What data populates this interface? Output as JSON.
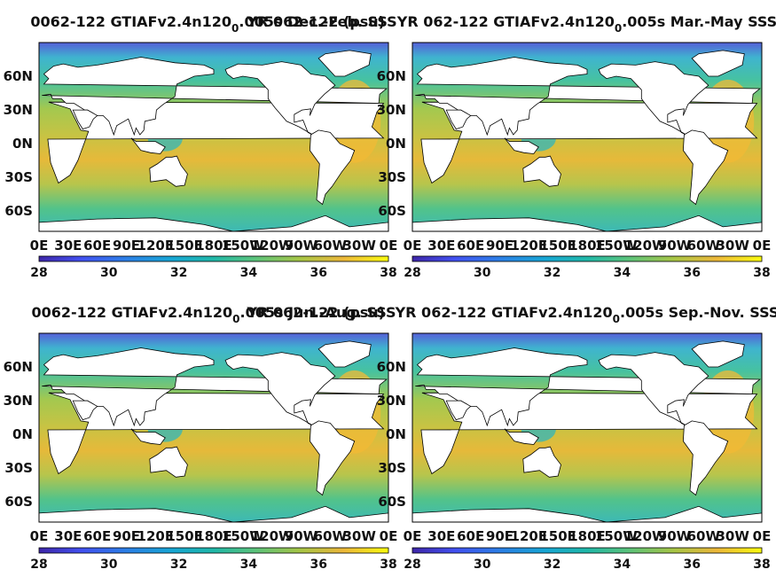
{
  "figure": {
    "colors": {
      "ocean_low": "#3a3dbb",
      "ocean_mid": "#20b0a2",
      "ocean_high": "#f1c232",
      "land": "#ffffff",
      "frame": "#000000"
    }
  },
  "chart_data": [
    {
      "type": "heatmap",
      "title_left": "0062-122 GTIAFv2.4n120",
      "title_subscript": "0",
      "title_right": ".005s Dec.-Feb. SSS",
      "title_overlap": "YR 062-122 (psu)",
      "xticklabels": [
        "0E",
        "30E",
        "60E",
        "90E",
        "120E",
        "150E",
        "180E",
        "150W",
        "120W",
        "90W",
        "60W",
        "30W",
        "0E"
      ],
      "yticklabels": [
        "60N",
        "30N",
        "0N",
        "30S",
        "60S"
      ],
      "yticks": [
        60,
        30,
        0,
        -30,
        -60
      ],
      "xlim": [
        0,
        360
      ],
      "ylim": [
        -78,
        90
      ],
      "colorbar": {
        "ticks": [
          28,
          30,
          32,
          34,
          36,
          38
        ],
        "range": [
          28,
          38
        ],
        "colormap": "parula"
      }
    },
    {
      "type": "heatmap",
      "title_left": "YR 062-122 GTIAFv2.4n120",
      "title_subscript": "0",
      "title_right": ".005s Mar.-May SSS",
      "xticklabels": [
        "0E",
        "30E",
        "60E",
        "90E",
        "120E",
        "150E",
        "180E",
        "150W",
        "120W",
        "90W",
        "60W",
        "30W",
        "0E"
      ],
      "yticklabels": [
        "60N",
        "30N",
        "0N",
        "30S",
        "60S"
      ],
      "yticks": [
        60,
        30,
        0,
        -30,
        -60
      ],
      "xlim": [
        0,
        360
      ],
      "ylim": [
        -78,
        90
      ],
      "colorbar": {
        "ticks": [
          28,
          30,
          32,
          34,
          36,
          38
        ],
        "range": [
          28,
          38
        ],
        "colormap": "parula"
      }
    },
    {
      "type": "heatmap",
      "title_left": "0062-122 GTIAFv2.4n120",
      "title_subscript": "0",
      "title_right": ".005s Jun.-Aug. SSS",
      "title_overlap": "YR 062-122 (psu)",
      "xticklabels": [
        "0E",
        "30E",
        "60E",
        "90E",
        "120E",
        "150E",
        "180E",
        "150W",
        "120W",
        "90W",
        "60W",
        "30W",
        "0E"
      ],
      "yticklabels": [
        "60N",
        "30N",
        "0N",
        "30S",
        "60S"
      ],
      "yticks": [
        60,
        30,
        0,
        -30,
        -60
      ],
      "xlim": [
        0,
        360
      ],
      "ylim": [
        -78,
        90
      ],
      "colorbar": {
        "ticks": [
          28,
          30,
          32,
          34,
          36,
          38
        ],
        "range": [
          28,
          38
        ],
        "colormap": "parula"
      }
    },
    {
      "type": "heatmap",
      "title_left": "YR 062-122 GTIAFv2.4n120",
      "title_subscript": "0",
      "title_right": ".005s Sep.-Nov. SSS",
      "xticklabels": [
        "0E",
        "30E",
        "60E",
        "90E",
        "120E",
        "150E",
        "180E",
        "150W",
        "120W",
        "90W",
        "60W",
        "30W",
        "0E"
      ],
      "yticklabels": [
        "60N",
        "30N",
        "0N",
        "30S",
        "60S"
      ],
      "yticks": [
        60,
        30,
        0,
        -30,
        -60
      ],
      "xlim": [
        0,
        360
      ],
      "ylim": [
        -78,
        90
      ],
      "colorbar": {
        "ticks": [
          28,
          30,
          32,
          34,
          36,
          38
        ],
        "range": [
          28,
          38
        ],
        "colormap": "parula"
      }
    }
  ]
}
